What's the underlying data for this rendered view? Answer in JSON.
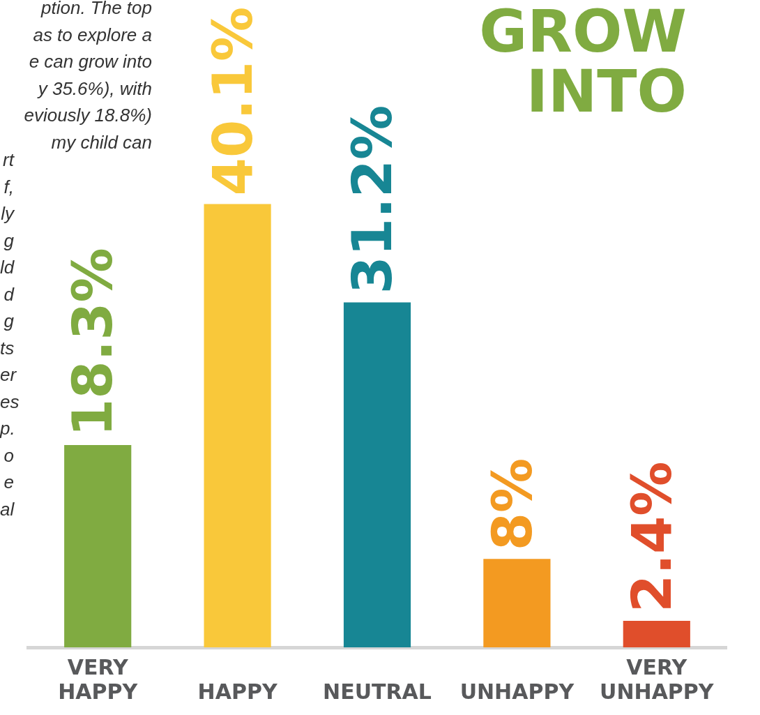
{
  "chart_data": {
    "type": "bar",
    "title": "GROW\nINTO",
    "categories": [
      "VERY HAPPY",
      "HAPPY",
      "NEUTRAL",
      "UNHAPPY",
      "VERY UNHAPPY"
    ],
    "values": [
      18.3,
      40.1,
      31.2,
      8,
      2.4
    ],
    "colors": [
      "#80ab41",
      "#f9c83a",
      "#178694",
      "#f39a21",
      "#e04e2b"
    ],
    "value_labels": [
      "18.3%",
      "40.1%",
      "31.2%",
      "8%",
      "2.4%"
    ],
    "annotations": [
      "ption. The top\nas to explore a\ne can grow into\ny 35.6%), with\neviously 18.8%)\nmy child can",
      "rt\nf,\nly\ng\nld\nd\ng\nts\ner\nes\np.\no\ne\nal"
    ],
    "grid": false,
    "legend": false
  }
}
